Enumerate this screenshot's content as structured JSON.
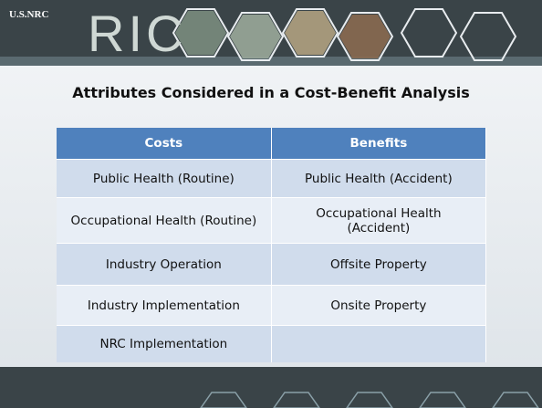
{
  "header": {
    "logo": "U.S.NRC",
    "conference": "RIC"
  },
  "title": "Attributes Considered in a Cost-Benefit Analysis",
  "table": {
    "columns": [
      "Costs",
      "Benefits"
    ],
    "rows": [
      [
        "Public Health (Routine)",
        "Public Health (Accident)"
      ],
      [
        "Occupational Health (Routine)",
        "Occupational Health (Accident)"
      ],
      [
        "Industry Operation",
        "Offsite Property"
      ],
      [
        "Industry Implementation",
        "Onsite Property"
      ],
      [
        "NRC Implementation",
        null
      ]
    ]
  }
}
